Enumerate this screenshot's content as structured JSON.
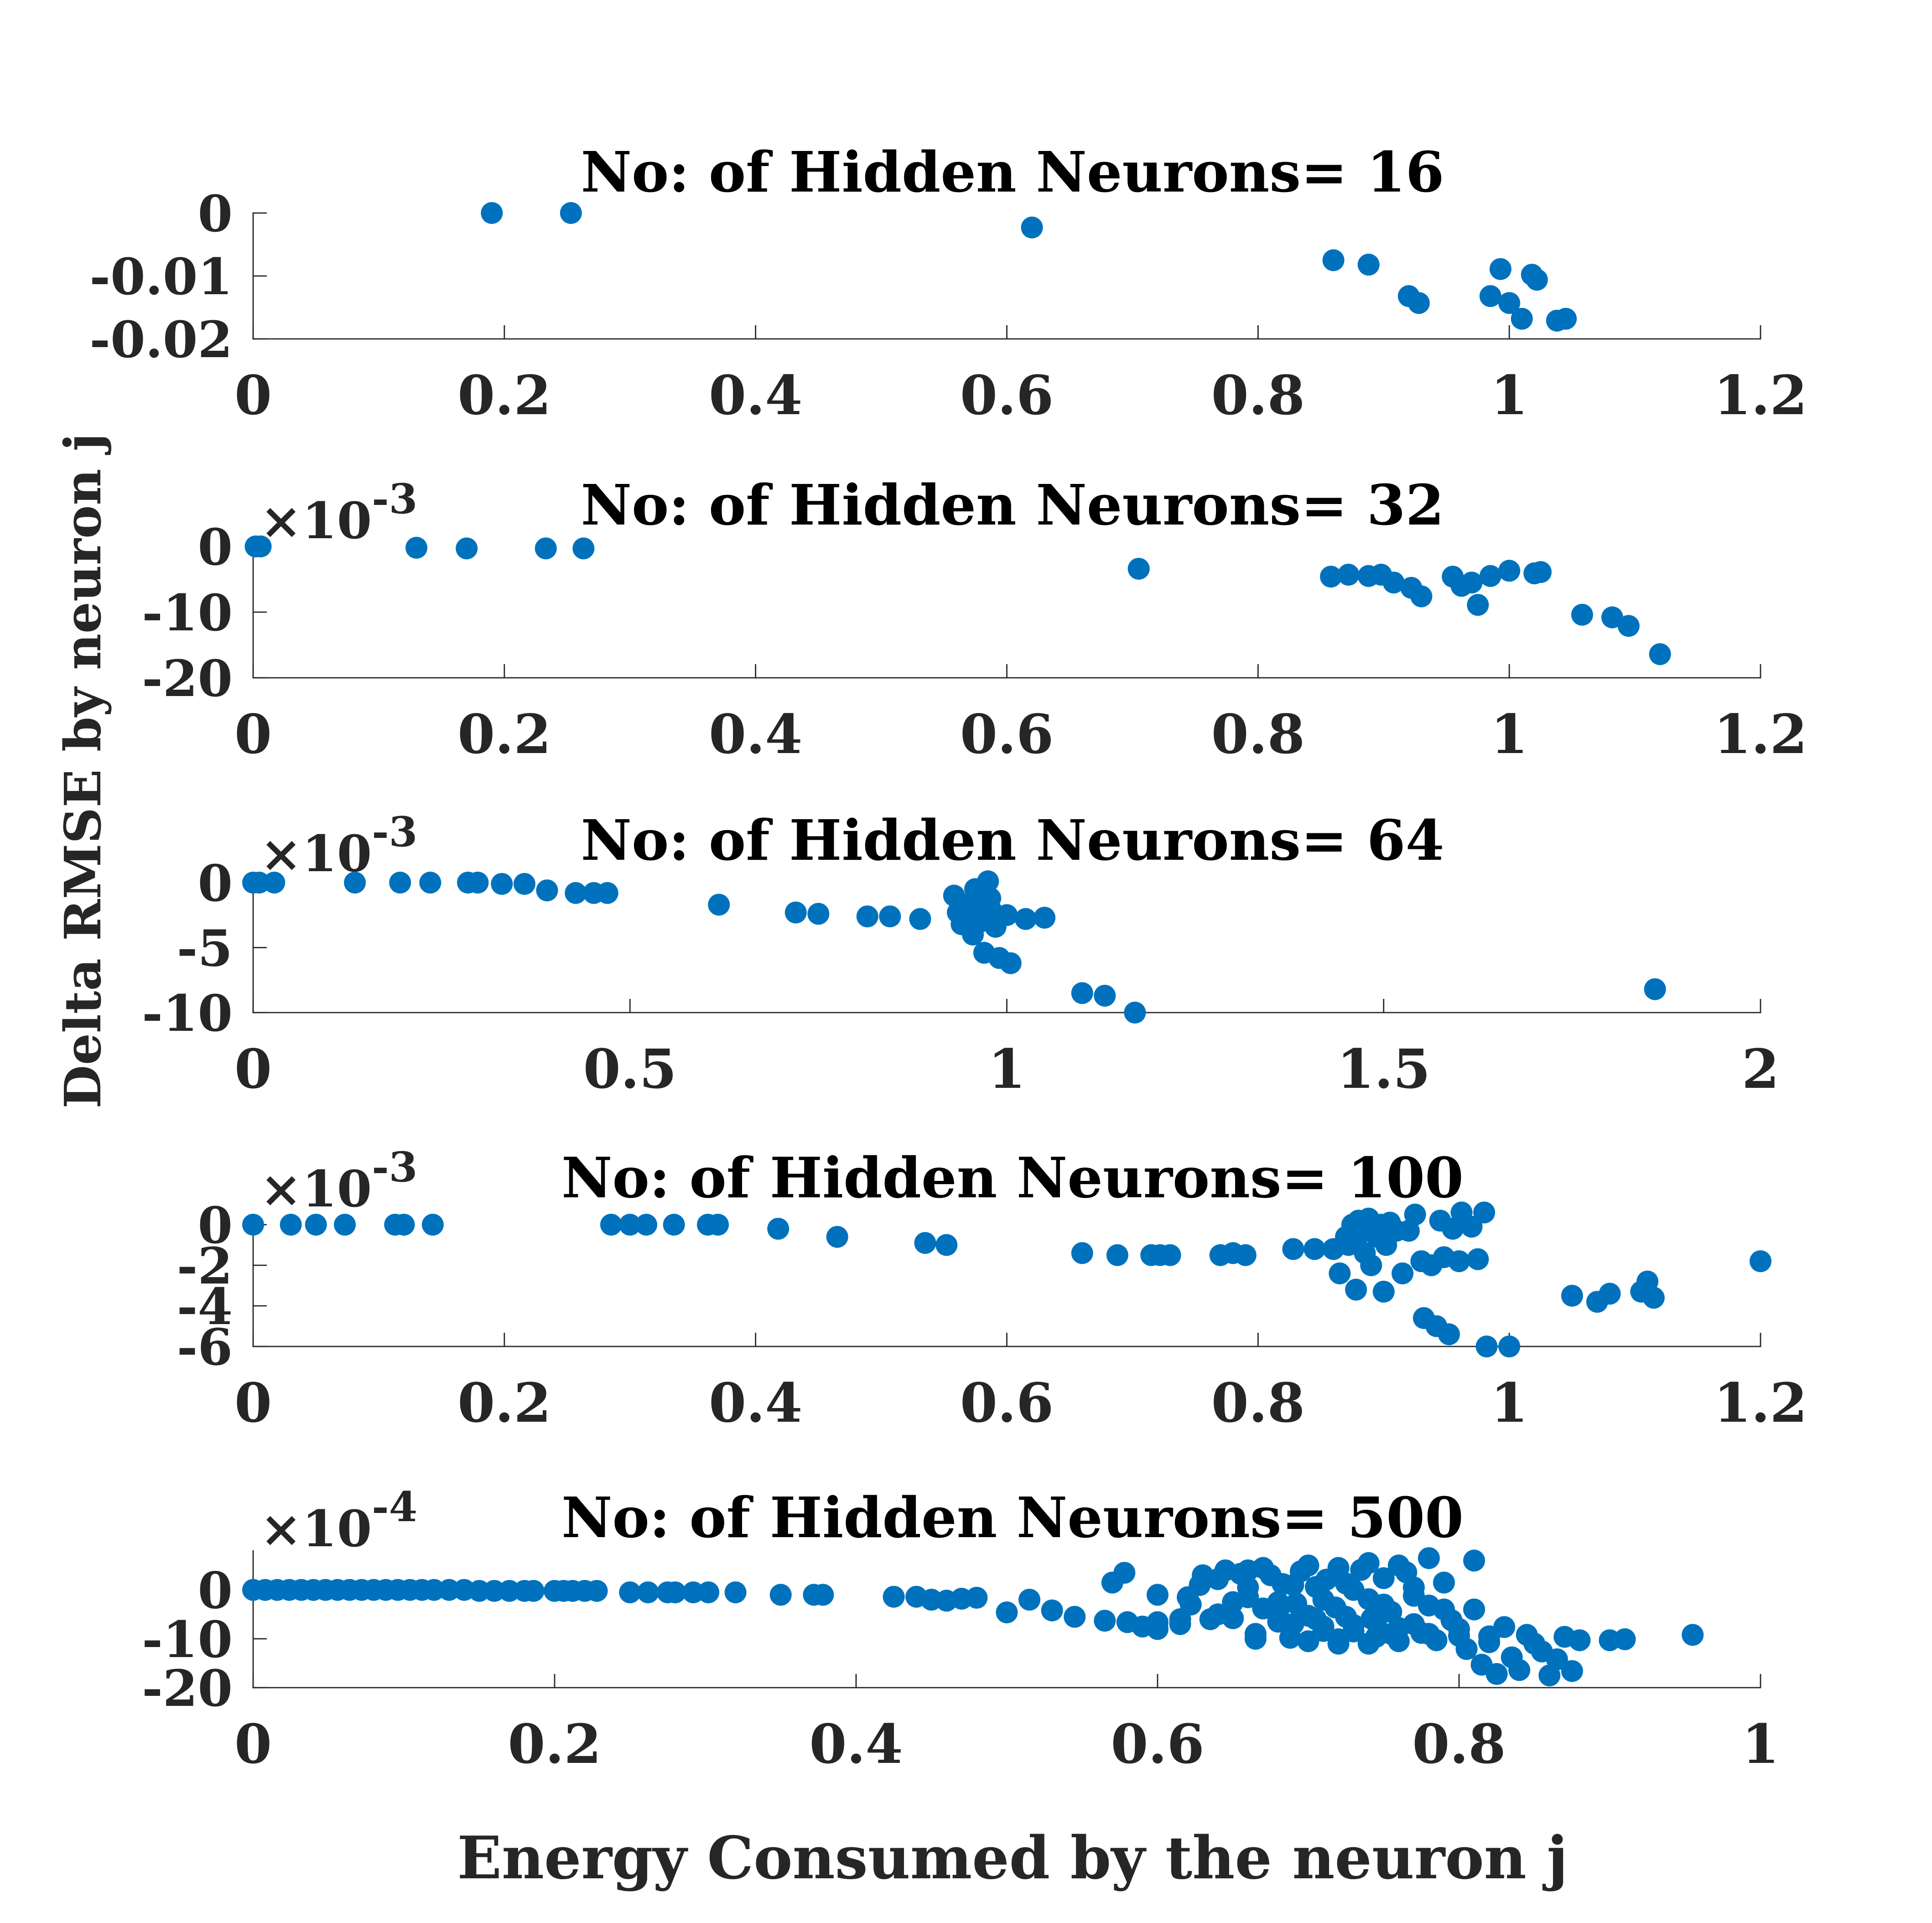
{
  "figure": {
    "ylabel": "Delta RMSE by neuron j",
    "xlabel": "Energy Consumed by the neuron j"
  },
  "chart_data": [
    {
      "type": "scatter",
      "title": "No: of Hidden Neurons= 16",
      "xlim": [
        0,
        1.2
      ],
      "ylim": [
        -0.02,
        0
      ],
      "xticks": [
        "0",
        "0.2",
        "0.4",
        "0.6",
        "0.8",
        "1",
        "1.2"
      ],
      "yticks": [
        "0",
        "-0.01",
        "-0.02"
      ],
      "yexponent": "",
      "points": [
        [
          0.19,
          0.0
        ],
        [
          0.253,
          0.0
        ],
        [
          0.62,
          -0.0023
        ],
        [
          0.86,
          -0.0075
        ],
        [
          0.888,
          -0.0082
        ],
        [
          0.92,
          -0.0132
        ],
        [
          0.928,
          -0.0143
        ],
        [
          0.985,
          -0.0132
        ],
        [
          0.993,
          -0.0089
        ],
        [
          1.0,
          -0.0143
        ],
        [
          1.01,
          -0.0168
        ],
        [
          1.018,
          -0.0098
        ],
        [
          1.022,
          -0.0106
        ],
        [
          1.038,
          -0.0171
        ],
        [
          1.045,
          -0.0168
        ]
      ]
    },
    {
      "type": "scatter",
      "title": "No: of Hidden Neurons= 32",
      "xlim": [
        0,
        1.2
      ],
      "ylim": [
        -20,
        0
      ],
      "xticks": [
        "0",
        "0.2",
        "0.4",
        "0.6",
        "0.8",
        "1",
        "1.2"
      ],
      "yticks": [
        "0",
        "-10",
        "-20"
      ],
      "yexponent": "-3",
      "points": [
        [
          0.002,
          0.0
        ],
        [
          0.006,
          0.0
        ],
        [
          0.13,
          -0.2
        ],
        [
          0.17,
          -0.3
        ],
        [
          0.233,
          -0.3
        ],
        [
          0.263,
          -0.3
        ],
        [
          0.705,
          -3.4
        ],
        [
          0.858,
          -4.6
        ],
        [
          0.872,
          -4.3
        ],
        [
          0.888,
          -4.5
        ],
        [
          0.898,
          -4.3
        ],
        [
          0.908,
          -5.5
        ],
        [
          0.922,
          -6.3
        ],
        [
          0.93,
          -7.6
        ],
        [
          0.955,
          -4.6
        ],
        [
          0.962,
          -6.0
        ],
        [
          0.97,
          -5.5
        ],
        [
          0.975,
          -8.9
        ],
        [
          0.985,
          -4.5
        ],
        [
          1.0,
          -3.7
        ],
        [
          1.02,
          -4.1
        ],
        [
          1.025,
          -3.9
        ],
        [
          1.058,
          -10.4
        ],
        [
          1.082,
          -10.8
        ],
        [
          1.095,
          -12.1
        ],
        [
          1.12,
          -16.4
        ]
      ]
    },
    {
      "type": "scatter",
      "title": "No: of Hidden Neurons= 64",
      "xlim": [
        0,
        2
      ],
      "ylim": [
        -10,
        0
      ],
      "xticks": [
        "0",
        "0.5",
        "1",
        "1.5",
        "2"
      ],
      "yticks": [
        "0",
        "-5",
        "-10"
      ],
      "yexponent": "-3",
      "points": [
        [
          0.0,
          0.0
        ],
        [
          0.008,
          0.0
        ],
        [
          0.028,
          0.0
        ],
        [
          0.135,
          0.0
        ],
        [
          0.195,
          0.0
        ],
        [
          0.235,
          0.0
        ],
        [
          0.285,
          0.0
        ],
        [
          0.298,
          0.0
        ],
        [
          0.33,
          -0.1
        ],
        [
          0.36,
          -0.1
        ],
        [
          0.39,
          -0.6
        ],
        [
          0.428,
          -0.8
        ],
        [
          0.452,
          -0.8
        ],
        [
          0.47,
          -0.8
        ],
        [
          0.618,
          -1.7
        ],
        [
          0.72,
          -2.3
        ],
        [
          0.75,
          -2.4
        ],
        [
          0.815,
          -2.6
        ],
        [
          0.845,
          -2.6
        ],
        [
          0.885,
          -2.8
        ],
        [
          0.93,
          -1.0
        ],
        [
          0.935,
          -2.3
        ],
        [
          0.94,
          -3.2
        ],
        [
          0.945,
          -1.7
        ],
        [
          0.95,
          -2.0
        ],
        [
          0.955,
          -4.0
        ],
        [
          0.958,
          -0.5
        ],
        [
          0.96,
          -1.5
        ],
        [
          0.962,
          -2.6
        ],
        [
          0.965,
          -3.0
        ],
        [
          0.97,
          -5.4
        ],
        [
          0.975,
          0.1
        ],
        [
          0.978,
          -1.2
        ],
        [
          0.98,
          -2.2
        ],
        [
          0.985,
          -3.4
        ],
        [
          0.99,
          -5.8
        ],
        [
          1.0,
          -2.5
        ],
        [
          1.005,
          -6.2
        ],
        [
          1.025,
          -2.8
        ],
        [
          1.05,
          -2.7
        ],
        [
          1.1,
          -8.5
        ],
        [
          1.13,
          -8.7
        ],
        [
          1.17,
          -10.0
        ],
        [
          1.86,
          -8.2
        ]
      ]
    },
    {
      "type": "scatter",
      "title": "No: of Hidden Neurons= 100",
      "xlim": [
        0,
        1.2
      ],
      "ylim": [
        -6,
        0
      ],
      "xticks": [
        "0",
        "0.2",
        "0.4",
        "0.6",
        "0.8",
        "1",
        "1.2"
      ],
      "yticks": [
        "0",
        "-2",
        "-4",
        "-6"
      ],
      "yexponent": "-3",
      "points": [
        [
          0.0,
          0.0
        ],
        [
          0.03,
          0.0
        ],
        [
          0.05,
          0.0
        ],
        [
          0.073,
          0.0
        ],
        [
          0.113,
          0.0
        ],
        [
          0.12,
          0.0
        ],
        [
          0.143,
          0.0
        ],
        [
          0.285,
          0.0
        ],
        [
          0.3,
          0.0
        ],
        [
          0.313,
          0.0
        ],
        [
          0.335,
          0.0
        ],
        [
          0.362,
          0.0
        ],
        [
          0.37,
          0.0
        ],
        [
          0.418,
          -0.2
        ],
        [
          0.465,
          -0.6
        ],
        [
          0.535,
          -0.9
        ],
        [
          0.552,
          -1.0
        ],
        [
          0.66,
          -1.4
        ],
        [
          0.688,
          -1.5
        ],
        [
          0.715,
          -1.5
        ],
        [
          0.722,
          -1.5
        ],
        [
          0.73,
          -1.5
        ],
        [
          0.77,
          -1.5
        ],
        [
          0.78,
          -1.4
        ],
        [
          0.79,
          -1.5
        ],
        [
          0.828,
          -1.2
        ],
        [
          0.845,
          -1.2
        ],
        [
          0.86,
          -1.2
        ],
        [
          0.865,
          -2.4
        ],
        [
          0.87,
          -0.6
        ],
        [
          0.872,
          -1.0
        ],
        [
          0.875,
          0.0
        ],
        [
          0.878,
          -3.2
        ],
        [
          0.88,
          0.2
        ],
        [
          0.882,
          -0.4
        ],
        [
          0.885,
          -1.4
        ],
        [
          0.888,
          0.3
        ],
        [
          0.89,
          -2.0
        ],
        [
          0.892,
          -0.2
        ],
        [
          0.895,
          -0.6
        ],
        [
          0.898,
          0.0
        ],
        [
          0.9,
          -3.3
        ],
        [
          0.902,
          -1.0
        ],
        [
          0.905,
          0.1
        ],
        [
          0.91,
          -0.3
        ],
        [
          0.915,
          -2.4
        ],
        [
          0.92,
          -0.3
        ],
        [
          0.925,
          0.5
        ],
        [
          0.93,
          -1.8
        ],
        [
          0.932,
          -4.6
        ],
        [
          0.938,
          -2.0
        ],
        [
          0.942,
          -5.0
        ],
        [
          0.945,
          0.2
        ],
        [
          0.948,
          -1.6
        ],
        [
          0.952,
          -5.4
        ],
        [
          0.955,
          -0.2
        ],
        [
          0.96,
          -1.8
        ],
        [
          0.962,
          0.6
        ],
        [
          0.97,
          -0.1
        ],
        [
          0.975,
          -1.7
        ],
        [
          0.98,
          0.6
        ],
        [
          0.982,
          -6.0
        ],
        [
          1.0,
          -6.0
        ],
        [
          1.05,
          -3.5
        ],
        [
          1.07,
          -3.8
        ],
        [
          1.08,
          -3.4
        ],
        [
          1.105,
          -3.3
        ],
        [
          1.11,
          -2.8
        ],
        [
          1.115,
          -3.6
        ],
        [
          1.2,
          -1.8
        ]
      ]
    },
    {
      "type": "scatter",
      "title": "No: of Hidden Neurons= 500",
      "xlim": [
        0,
        1
      ],
      "ylim": [
        -20,
        8
      ],
      "xticks": [
        "0",
        "0.2",
        "0.4",
        "0.6",
        "0.8",
        "1"
      ],
      "yticks": [
        "0",
        "-10",
        "-20"
      ],
      "yexponent": "-4",
      "points": [
        [
          0.0,
          0.0
        ],
        [
          0.008,
          0.0
        ],
        [
          0.016,
          0.0
        ],
        [
          0.024,
          0.0
        ],
        [
          0.032,
          0.0
        ],
        [
          0.04,
          0.0
        ],
        [
          0.048,
          0.0
        ],
        [
          0.056,
          0.0
        ],
        [
          0.064,
          0.0
        ],
        [
          0.072,
          0.0
        ],
        [
          0.08,
          0.0
        ],
        [
          0.088,
          0.0
        ],
        [
          0.096,
          0.0
        ],
        [
          0.104,
          0.0
        ],
        [
          0.112,
          0.0
        ],
        [
          0.12,
          0.0
        ],
        [
          0.13,
          0.0
        ],
        [
          0.14,
          0.0
        ],
        [
          0.15,
          -0.2
        ],
        [
          0.16,
          -0.2
        ],
        [
          0.17,
          -0.2
        ],
        [
          0.18,
          -0.2
        ],
        [
          0.186,
          -0.2
        ],
        [
          0.2,
          -0.2
        ],
        [
          0.206,
          -0.2
        ],
        [
          0.212,
          -0.2
        ],
        [
          0.22,
          -0.2
        ],
        [
          0.228,
          -0.2
        ],
        [
          0.25,
          -0.5
        ],
        [
          0.262,
          -0.5
        ],
        [
          0.275,
          -0.5
        ],
        [
          0.28,
          -0.5
        ],
        [
          0.292,
          -0.5
        ],
        [
          0.302,
          -0.5
        ],
        [
          0.32,
          -0.5
        ],
        [
          0.35,
          -1.0
        ],
        [
          0.372,
          -1.0
        ],
        [
          0.378,
          -1.0
        ],
        [
          0.425,
          -1.4
        ],
        [
          0.44,
          -1.4
        ],
        [
          0.45,
          -2.0
        ],
        [
          0.46,
          -2.2
        ],
        [
          0.47,
          -1.8
        ],
        [
          0.48,
          -1.6
        ],
        [
          0.5,
          -4.6
        ],
        [
          0.515,
          -2.0
        ],
        [
          0.53,
          -4.2
        ],
        [
          0.545,
          -5.5
        ],
        [
          0.565,
          -6.3
        ],
        [
          0.58,
          -6.6
        ],
        [
          0.6,
          -6.6
        ],
        [
          0.615,
          -6.0
        ],
        [
          0.622,
          -3.0
        ],
        [
          0.628,
          1.0
        ],
        [
          0.635,
          -6.0
        ],
        [
          0.64,
          2.2
        ],
        [
          0.65,
          -5.8
        ],
        [
          0.655,
          3.3
        ],
        [
          0.66,
          0.5
        ],
        [
          0.665,
          -9.0
        ],
        [
          0.67,
          -3.8
        ],
        [
          0.675,
          3.0
        ],
        [
          0.68,
          -6.5
        ],
        [
          0.683,
          1.2
        ],
        [
          0.688,
          -9.8
        ],
        [
          0.692,
          -2.8
        ],
        [
          0.695,
          3.8
        ],
        [
          0.7,
          -5.3
        ],
        [
          0.705,
          0.6
        ],
        [
          0.71,
          -8.4
        ],
        [
          0.712,
          2.1
        ],
        [
          0.718,
          -3.6
        ],
        [
          0.72,
          -10.1
        ],
        [
          0.725,
          1.3
        ],
        [
          0.73,
          -7.2
        ],
        [
          0.735,
          4.1
        ],
        [
          0.74,
          -1.9
        ],
        [
          0.742,
          -5.9
        ],
        [
          0.745,
          -9.6
        ],
        [
          0.75,
          2.4
        ],
        [
          0.755,
          -4.5
        ],
        [
          0.76,
          -7.8
        ],
        [
          0.765,
          3.6
        ],
        [
          0.77,
          -1.2
        ],
        [
          0.775,
          -8.8
        ],
        [
          0.78,
          -3.2
        ],
        [
          0.785,
          -10.3
        ],
        [
          0.79,
          1.5
        ],
        [
          0.795,
          -6.2
        ],
        [
          0.8,
          -9.4
        ],
        [
          0.805,
          -12.1
        ],
        [
          0.81,
          -4.0
        ],
        [
          0.815,
          -15.3
        ],
        [
          0.82,
          -10.7
        ],
        [
          0.825,
          -17.2
        ],
        [
          0.83,
          -7.6
        ],
        [
          0.835,
          -13.8
        ],
        [
          0.84,
          -16.4
        ],
        [
          0.845,
          -9.2
        ],
        [
          0.85,
          -11.0
        ],
        [
          0.855,
          -12.6
        ],
        [
          0.86,
          -17.5
        ],
        [
          0.865,
          -14.2
        ],
        [
          0.87,
          -9.6
        ],
        [
          0.875,
          -16.6
        ],
        [
          0.88,
          -10.3
        ],
        [
          0.9,
          -10.3
        ],
        [
          0.91,
          -10.1
        ],
        [
          0.955,
          -9.2
        ],
        [
          0.57,
          1.5
        ],
        [
          0.578,
          3.5
        ],
        [
          0.59,
          -7.5
        ],
        [
          0.6,
          -8.0
        ],
        [
          0.615,
          -7.0
        ],
        [
          0.665,
          -10.0
        ],
        [
          0.7,
          -10.5
        ],
        [
          0.72,
          -11.0
        ],
        [
          0.74,
          -11.0
        ],
        [
          0.76,
          -10.5
        ],
        [
          0.78,
          -9.0
        ],
        [
          0.8,
          -8.0
        ],
        [
          0.82,
          -9.5
        ],
        [
          0.6,
          -1.0
        ],
        [
          0.66,
          -1.5
        ],
        [
          0.68,
          -2.5
        ],
        [
          0.69,
          1.0
        ],
        [
          0.71,
          -2.0
        ],
        [
          0.73,
          0.0
        ],
        [
          0.75,
          -3.0
        ],
        [
          0.77,
          0.5
        ],
        [
          0.79,
          -4.0
        ],
        [
          0.72,
          4.5
        ],
        [
          0.74,
          5.5
        ],
        [
          0.76,
          5.0
        ],
        [
          0.78,
          6.5
        ],
        [
          0.81,
          6.0
        ],
        [
          0.63,
          3.0
        ],
        [
          0.645,
          4.0
        ],
        [
          0.66,
          4.0
        ],
        [
          0.67,
          4.5
        ],
        [
          0.7,
          5.0
        ],
        [
          0.705,
          -6.0
        ],
        [
          0.725,
          -5.5
        ],
        [
          0.745,
          -6.5
        ],
        [
          0.77,
          -7.0
        ],
        [
          0.73,
          -8.5
        ],
        [
          0.755,
          -9.0
        ],
        [
          0.71,
          -7.5
        ],
        [
          0.69,
          -7.0
        ],
        [
          0.68,
          -4.5
        ],
        [
          0.65,
          -2.5
        ],
        [
          0.64,
          -5.0
        ],
        [
          0.62,
          -1.5
        ]
      ]
    }
  ]
}
